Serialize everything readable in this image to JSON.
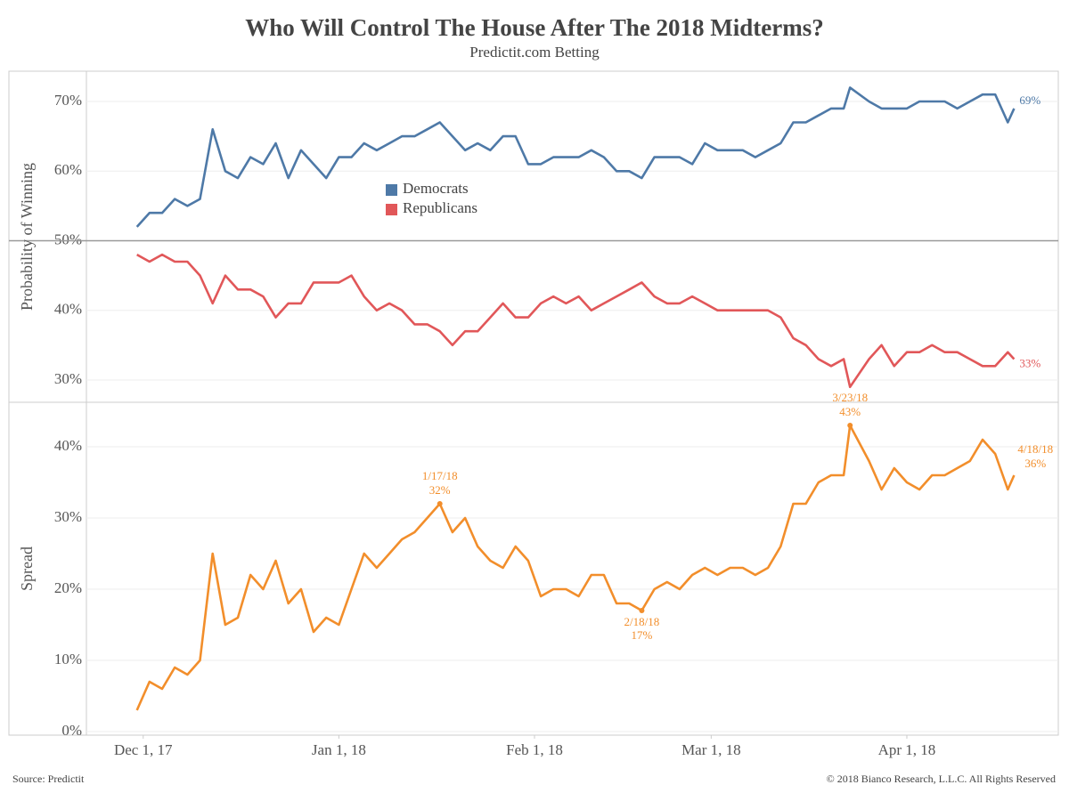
{
  "header": {
    "title": "Who Will Control The House After The 2018 Midterms?",
    "subtitle": "Predictit.com Betting"
  },
  "footer": {
    "source": "Source: Predictit",
    "copyright": "© 2018 Bianco Research, L.L.C. All Rights Reserved"
  },
  "chart_data": [
    {
      "type": "line",
      "ylabel": "Probability of Winning",
      "x": [
        "2017-11-30",
        "2017-12-02",
        "2017-12-04",
        "2017-12-06",
        "2017-12-08",
        "2017-12-10",
        "2017-12-12",
        "2017-12-14",
        "2017-12-16",
        "2017-12-18",
        "2017-12-20",
        "2017-12-22",
        "2017-12-24",
        "2017-12-26",
        "2017-12-28",
        "2017-12-30",
        "2018-01-01",
        "2018-01-03",
        "2018-01-05",
        "2018-01-07",
        "2018-01-09",
        "2018-01-11",
        "2018-01-13",
        "2018-01-15",
        "2018-01-17",
        "2018-01-19",
        "2018-01-21",
        "2018-01-23",
        "2018-01-25",
        "2018-01-27",
        "2018-01-29",
        "2018-01-31",
        "2018-02-02",
        "2018-02-04",
        "2018-02-06",
        "2018-02-08",
        "2018-02-10",
        "2018-02-12",
        "2018-02-14",
        "2018-02-16",
        "2018-02-18",
        "2018-02-20",
        "2018-02-22",
        "2018-02-24",
        "2018-02-26",
        "2018-02-28",
        "2018-03-02",
        "2018-03-04",
        "2018-03-06",
        "2018-03-08",
        "2018-03-10",
        "2018-03-12",
        "2018-03-14",
        "2018-03-16",
        "2018-03-18",
        "2018-03-20",
        "2018-03-22",
        "2018-03-23",
        "2018-03-26",
        "2018-03-28",
        "2018-03-30",
        "2018-04-01",
        "2018-04-03",
        "2018-04-05",
        "2018-04-07",
        "2018-04-09",
        "2018-04-11",
        "2018-04-13",
        "2018-04-15",
        "2018-04-17",
        "2018-04-18"
      ],
      "xlim": [
        "2017-11-22",
        "2018-04-25"
      ],
      "ylim": [
        26.8,
        74.35
      ],
      "yticks": [
        {
          "value": 30,
          "label": "30%"
        },
        {
          "value": 40,
          "label": "40%"
        },
        {
          "value": 50,
          "label": "50%"
        },
        {
          "value": 60,
          "label": "60%"
        },
        {
          "value": 70,
          "label": "70%"
        }
      ],
      "grid": true,
      "reference_line": 50,
      "series": [
        {
          "name": "Democrats",
          "color": "#4e79a7",
          "values": [
            52,
            54,
            54,
            56,
            55,
            56,
            66,
            60,
            59,
            62,
            61,
            64,
            59,
            63,
            61,
            59,
            62,
            62,
            64,
            63,
            64,
            65,
            65,
            66,
            67,
            65,
            63,
            64,
            63,
            65,
            65,
            61,
            61,
            62,
            62,
            62,
            63,
            62,
            60,
            60,
            59,
            62,
            62,
            62,
            61,
            64,
            63,
            63,
            63,
            62,
            63,
            64,
            67,
            67,
            68,
            69,
            69,
            72,
            70,
            69,
            69,
            69,
            70,
            70,
            70,
            69,
            70,
            71,
            71,
            67,
            69
          ]
        },
        {
          "name": "Republicans",
          "color": "#e15759",
          "values": [
            48,
            47,
            48,
            47,
            47,
            45,
            41,
            45,
            43,
            43,
            42,
            39,
            41,
            41,
            44,
            44,
            44,
            45,
            42,
            40,
            41,
            40,
            38,
            38,
            37,
            35,
            37,
            37,
            39,
            41,
            39,
            39,
            41,
            42,
            41,
            42,
            40,
            41,
            42,
            43,
            44,
            42,
            41,
            41,
            42,
            41,
            40,
            40,
            40,
            40,
            40,
            39,
            36,
            35,
            33,
            32,
            33,
            29,
            33,
            35,
            32,
            34,
            34,
            35,
            34,
            34,
            33,
            32,
            32,
            34,
            33
          ]
        }
      ],
      "annotations": [
        {
          "x": "2018-04-18",
          "value": 69,
          "label": "69%",
          "color": "#4e79a7",
          "position": "right"
        },
        {
          "x": "2018-04-18",
          "value": 33,
          "label": "33%",
          "color": "#e15759",
          "position": "right"
        }
      ]
    },
    {
      "type": "line",
      "ylabel": "Spread",
      "x": [
        "2017-11-30",
        "2017-12-02",
        "2017-12-04",
        "2017-12-06",
        "2017-12-08",
        "2017-12-10",
        "2017-12-12",
        "2017-12-14",
        "2017-12-16",
        "2017-12-18",
        "2017-12-20",
        "2017-12-22",
        "2017-12-24",
        "2017-12-26",
        "2017-12-28",
        "2017-12-30",
        "2018-01-01",
        "2018-01-03",
        "2018-01-05",
        "2018-01-07",
        "2018-01-09",
        "2018-01-11",
        "2018-01-13",
        "2018-01-15",
        "2018-01-17",
        "2018-01-19",
        "2018-01-21",
        "2018-01-23",
        "2018-01-25",
        "2018-01-27",
        "2018-01-29",
        "2018-01-31",
        "2018-02-02",
        "2018-02-04",
        "2018-02-06",
        "2018-02-08",
        "2018-02-10",
        "2018-02-12",
        "2018-02-14",
        "2018-02-16",
        "2018-02-18",
        "2018-02-20",
        "2018-02-22",
        "2018-02-24",
        "2018-02-26",
        "2018-02-28",
        "2018-03-02",
        "2018-03-04",
        "2018-03-06",
        "2018-03-08",
        "2018-03-10",
        "2018-03-12",
        "2018-03-14",
        "2018-03-16",
        "2018-03-18",
        "2018-03-20",
        "2018-03-22",
        "2018-03-23",
        "2018-03-26",
        "2018-03-28",
        "2018-03-30",
        "2018-04-01",
        "2018-04-03",
        "2018-04-05",
        "2018-04-07",
        "2018-04-09",
        "2018-04-11",
        "2018-04-13",
        "2018-04-15",
        "2018-04-17",
        "2018-04-18"
      ],
      "xlim": [
        "2017-11-22",
        "2018-04-25"
      ],
      "xticks": [
        {
          "value": "2017-12-01",
          "label": "Dec 1, 17"
        },
        {
          "value": "2018-01-01",
          "label": "Jan 1, 18"
        },
        {
          "value": "2018-02-01",
          "label": "Feb 1, 18"
        },
        {
          "value": "2018-03-01",
          "label": "Mar 1, 18"
        },
        {
          "value": "2018-04-01",
          "label": "Apr 1, 18"
        }
      ],
      "ylim": [
        -0.5,
        46.25
      ],
      "yticks": [
        {
          "value": 0,
          "label": "0%"
        },
        {
          "value": 10,
          "label": "10%"
        },
        {
          "value": 20,
          "label": "20%"
        },
        {
          "value": 30,
          "label": "30%"
        },
        {
          "value": 40,
          "label": "40%"
        }
      ],
      "grid": true,
      "series": [
        {
          "name": "Spread",
          "color": "#f28e2b",
          "values": [
            3,
            7,
            6,
            9,
            8,
            10,
            25,
            15,
            16,
            22,
            20,
            24,
            18,
            20,
            14,
            16,
            15,
            20,
            25,
            23,
            25,
            27,
            28,
            30,
            32,
            28,
            30,
            26,
            24,
            23,
            26,
            24,
            19,
            20,
            20,
            19,
            22,
            22,
            18,
            18,
            17,
            20,
            21,
            20,
            22,
            23,
            22,
            23,
            23,
            22,
            23,
            26,
            32,
            32,
            35,
            36,
            36,
            43,
            38,
            34,
            37,
            35,
            34,
            36,
            36,
            37,
            38,
            41,
            39,
            34,
            36
          ]
        }
      ],
      "annotations": [
        {
          "x": "2018-01-17",
          "value": 32,
          "label": "1/17/18",
          "value_label": "32%",
          "color": "#f28e2b",
          "position": "above"
        },
        {
          "x": "2018-02-18",
          "value": 17,
          "label": "2/18/18",
          "value_label": "17%",
          "color": "#f28e2b",
          "position": "below"
        },
        {
          "x": "2018-03-23",
          "value": 43,
          "label": "3/23/18",
          "value_label": "43%",
          "color": "#f28e2b",
          "position": "above"
        },
        {
          "x": "2018-04-18",
          "value": 36,
          "label": "4/18/18",
          "value_label": "36%",
          "color": "#f28e2b",
          "position": "right2"
        }
      ]
    }
  ]
}
